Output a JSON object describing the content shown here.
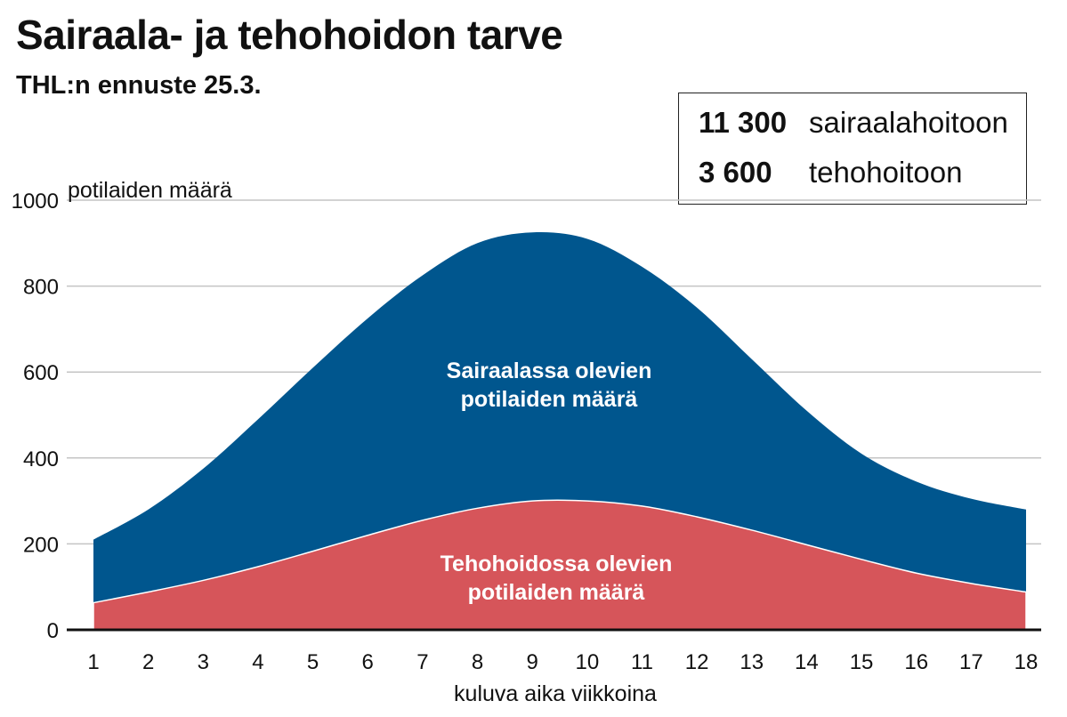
{
  "header": {
    "title": "Sairaala- ja tehohoidon tarve",
    "subtitle": "THL:n ennuste 25.3."
  },
  "infobox": {
    "rows": [
      {
        "value": "11 300",
        "label": "sairaalahoitoon"
      },
      {
        "value": "3 600",
        "label": "tehohoitoon"
      }
    ]
  },
  "chart_data": {
    "type": "area",
    "title": "Sairaala- ja tehohoidon tarve",
    "subtitle": "THL:n ennuste 25.3.",
    "xlabel": "kuluva aika viikkoina",
    "ylabel": "potilaiden määrä",
    "x": [
      1,
      2,
      3,
      4,
      5,
      6,
      7,
      8,
      9,
      10,
      11,
      12,
      13,
      14,
      15,
      16,
      17,
      18
    ],
    "xlim": [
      1,
      18
    ],
    "ylim": [
      0,
      1000
    ],
    "yticks": [
      0,
      200,
      400,
      600,
      800,
      1000
    ],
    "grid": true,
    "series": [
      {
        "name": "Sairaalassa olevien potilaiden määrä",
        "label_lines": [
          "Sairaalassa olevien",
          "potilaiden määrä"
        ],
        "color": "#00568e",
        "values": [
          210,
          280,
          375,
          490,
          610,
          725,
          825,
          900,
          925,
          910,
          845,
          750,
          630,
          510,
          410,
          345,
          305,
          280
        ]
      },
      {
        "name": "Tehohoidossa olevien potilaiden määrä",
        "label_lines": [
          "Tehohoidossa olevien",
          "potilaiden määrä"
        ],
        "color": "#d6555a",
        "values": [
          63,
          88,
          115,
          147,
          183,
          220,
          255,
          283,
          300,
          300,
          288,
          263,
          232,
          198,
          164,
          132,
          108,
          88
        ]
      }
    ]
  }
}
